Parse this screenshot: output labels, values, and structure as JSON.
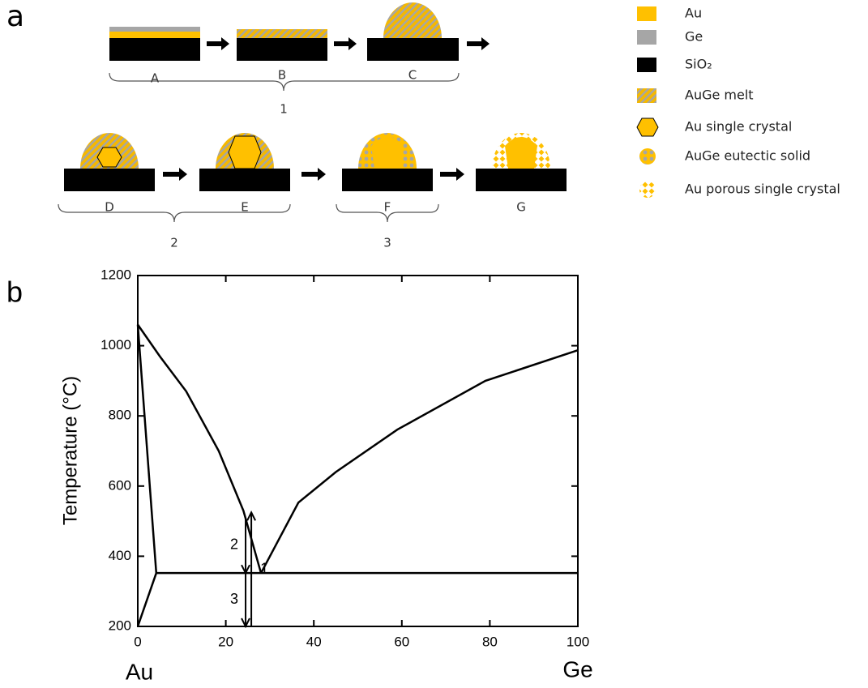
{
  "panel_a": {
    "label": "a",
    "steps": [
      "A",
      "B",
      "C",
      "D",
      "E",
      "F",
      "G"
    ],
    "groups": [
      "1",
      "2",
      "3"
    ],
    "legend": [
      "Au",
      "Ge",
      "SiO₂",
      "AuGe melt",
      "Au single crystal",
      "AuGe eutectic solid",
      "Au porous single crystal"
    ]
  },
  "chart_data": {
    "type": "line",
    "label": "b",
    "ylabel": "Temperature (°C)",
    "x_end_labels": [
      "Au",
      "Ge"
    ],
    "xlim": [
      0,
      100
    ],
    "ylim": [
      200,
      1200
    ],
    "xticks": [
      0,
      20,
      40,
      60,
      80,
      100
    ],
    "yticks": [
      200,
      400,
      600,
      800,
      1000,
      1200
    ],
    "series": [
      {
        "color": "#000000",
        "x": [
          0,
          5,
          11,
          18.4,
          24,
          28
        ],
        "values": [
          1060,
          970,
          870,
          700,
          530,
          352
        ]
      },
      {
        "color": "#000000",
        "x": [
          28,
          36.5,
          45,
          59,
          79,
          100
        ],
        "values": [
          352,
          553,
          640,
          761,
          900,
          987
        ]
      },
      {
        "color": "#000000",
        "x": [
          0,
          4.2
        ],
        "values": [
          1060,
          352
        ]
      },
      {
        "color": "#000000",
        "x": [
          4.2,
          100
        ],
        "values": [
          352,
          352
        ]
      },
      {
        "color": "#000000",
        "x": [
          0,
          4.2
        ],
        "values": [
          200,
          352
        ]
      }
    ],
    "annotations": [
      {
        "label": "2",
        "x": 24.5,
        "y": [
          510,
          352
        ]
      },
      {
        "label": "3",
        "x": 24.5,
        "y": [
          352,
          200
        ]
      },
      {
        "label": "1",
        "x": 25.8,
        "y": [
          200,
          525
        ]
      }
    ]
  }
}
